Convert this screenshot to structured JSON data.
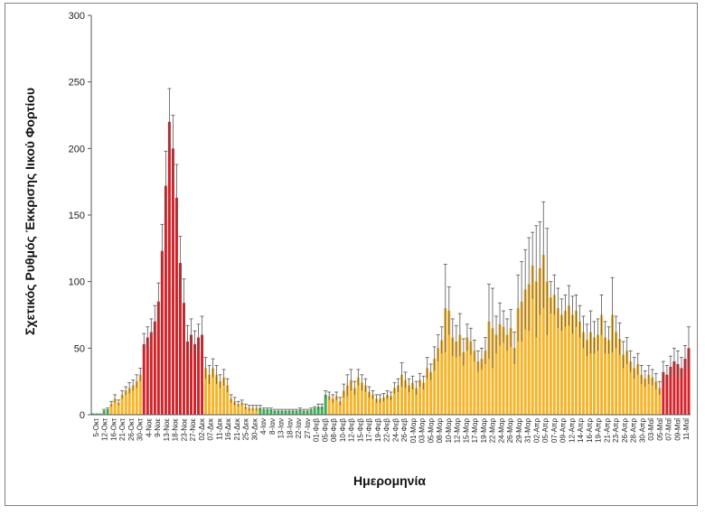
{
  "chart_data": {
    "type": "bar",
    "title": "",
    "xlabel": "Ημερομηνία",
    "ylabel": "Σχετικός Ρυθμός Έκκρισης Ιικού Φορτίου",
    "ylim": [
      0,
      300
    ],
    "yticks": [
      0,
      50,
      100,
      150,
      200,
      250,
      300
    ],
    "grid": false,
    "legend": "none",
    "colors": {
      "green": "#3fae5a",
      "orange": "#f5b428",
      "red": "#d2232a",
      "error": "#555555",
      "axis": "#555555"
    },
    "tick_labels": [
      "5-Οκτ",
      "12-Οκτ",
      "16-Οκτ",
      "21-Οκτ",
      "26-Οκτ",
      "30-Οκτ",
      "4-Νοε",
      "9-Νοε",
      "13-Νοε",
      "18-Νοε",
      "23-Νοε",
      "27-Νοε",
      "02-Δεκ",
      "07-Δεκ",
      "11-Δεκ",
      "16-Δεκ",
      "21-Δεκ",
      "25-Δεκ",
      "30-Δεκ",
      "4-Ιαν",
      "8-Ιαν",
      "13-Ιαν",
      "18-Ιαν",
      "22-Ιαν",
      "27-Ιαν",
      "01-Φεβ",
      "05-Φεβ",
      "08-Φεβ",
      "10-Φεβ",
      "12-Φεβ",
      "15-Φεβ",
      "17-Φεβ",
      "19-Φεβ",
      "22-Φεβ",
      "24-Φεβ",
      "26-Φεβ",
      "01-Μαρ",
      "03-Μαρ",
      "05-Μαρ",
      "08-Μαρ",
      "10-Μαρ",
      "12-Μαρ",
      "15-Μαρ",
      "17-Μαρ",
      "19-Μαρ",
      "22-Μαρ",
      "24-Μαρ",
      "26-Μαρ",
      "29-Μαρ",
      "31-Μαρ",
      "02-Απρ",
      "05-Απρ",
      "07-Απρ",
      "09-Απρ",
      "12-Απρ",
      "14-Απρ",
      "16-Απρ",
      "19-Απρ",
      "21-Απρ",
      "23-Απρ",
      "26-Απρ",
      "28-Απρ",
      "30-Απρ",
      "03-Μαΐ",
      "05-Μαΐ",
      "07-Μαΐ",
      "09-Μαΐ",
      "11-Μαΐ"
    ],
    "values": [
      1,
      1,
      1,
      3,
      4,
      8,
      12,
      9,
      15,
      18,
      20,
      22,
      25,
      30,
      53,
      58,
      62,
      70,
      85,
      123,
      172,
      220,
      200,
      163,
      114,
      84,
      55,
      60,
      53,
      58,
      60,
      35,
      30,
      35,
      30,
      25,
      28,
      22,
      12,
      10,
      8,
      9,
      6,
      5,
      5,
      5,
      5,
      4,
      4,
      4,
      3,
      3,
      3,
      3,
      3,
      3,
      3,
      4,
      3,
      3,
      4,
      5,
      6,
      6,
      15,
      14,
      12,
      14,
      10,
      18,
      22,
      26,
      20,
      28,
      24,
      22,
      17,
      15,
      12,
      12,
      13,
      15,
      14,
      20,
      22,
      30,
      26,
      22,
      24,
      20,
      26,
      24,
      35,
      32,
      42,
      50,
      56,
      80,
      78,
      58,
      55,
      60,
      47,
      58,
      55,
      48,
      40,
      42,
      48,
      70,
      65,
      60,
      68,
      66,
      60,
      65,
      50,
      80,
      85,
      94,
      98,
      112,
      100,
      110,
      120,
      100,
      88,
      90,
      80,
      75,
      78,
      82,
      75,
      78,
      70,
      62,
      56,
      62,
      58,
      60,
      75,
      58,
      56,
      75,
      62,
      57,
      45,
      48,
      40,
      35,
      38,
      30,
      27,
      30,
      28,
      25,
      20,
      32,
      30,
      36,
      40,
      38,
      35,
      42,
      50
    ],
    "colorkey": "GGGGGOOOOOOOOORRRRRRRRRRRRRRRRROOOOOOOOOOOOOOOGGGGGGGGGGGGGGGGGGGOOOOOOOOOOOOOOOOOOOOOOOOOOOOOOOOOOOOOOOOOOOOOOOOOOOOOOOOOOOOOOOOOOOOOOOOOOOOOOOOOOOOOOOOOOOORRRRRRRRRRRRROOOOOOOOOOOOOOOOOOOOOOOOOOOOOOOOOOOOOOOOOOOOOOOOOOOOOO",
    "errors": [
      0,
      0,
      0,
      1,
      1,
      2,
      3,
      2,
      3,
      3,
      4,
      4,
      5,
      5,
      8,
      8,
      10,
      12,
      14,
      20,
      26,
      25,
      25,
      25,
      20,
      18,
      12,
      12,
      10,
      10,
      14,
      8,
      7,
      7,
      7,
      5,
      6,
      5,
      3,
      3,
      2,
      2,
      2,
      2,
      2,
      2,
      2,
      1,
      1,
      1,
      1,
      1,
      1,
      1,
      1,
      1,
      1,
      1,
      1,
      1,
      1,
      1,
      2,
      2,
      3,
      3,
      3,
      3,
      3,
      5,
      8,
      8,
      5,
      6,
      6,
      5,
      4,
      3,
      3,
      3,
      3,
      3,
      3,
      4,
      5,
      9,
      6,
      5,
      5,
      5,
      5,
      5,
      8,
      6,
      9,
      10,
      10,
      33,
      18,
      14,
      12,
      16,
      10,
      10,
      10,
      8,
      8,
      8,
      10,
      28,
      30,
      14,
      16,
      12,
      12,
      14,
      12,
      25,
      30,
      30,
      35,
      25,
      42,
      35,
      40,
      40,
      12,
      15,
      15,
      12,
      12,
      15,
      14,
      12,
      12,
      12,
      12,
      16,
      12,
      12,
      15,
      12,
      10,
      28,
      12,
      12,
      10,
      10,
      8,
      8,
      8,
      7,
      6,
      7,
      6,
      6,
      5,
      8,
      7,
      8,
      10,
      10,
      8,
      10,
      16
    ]
  }
}
